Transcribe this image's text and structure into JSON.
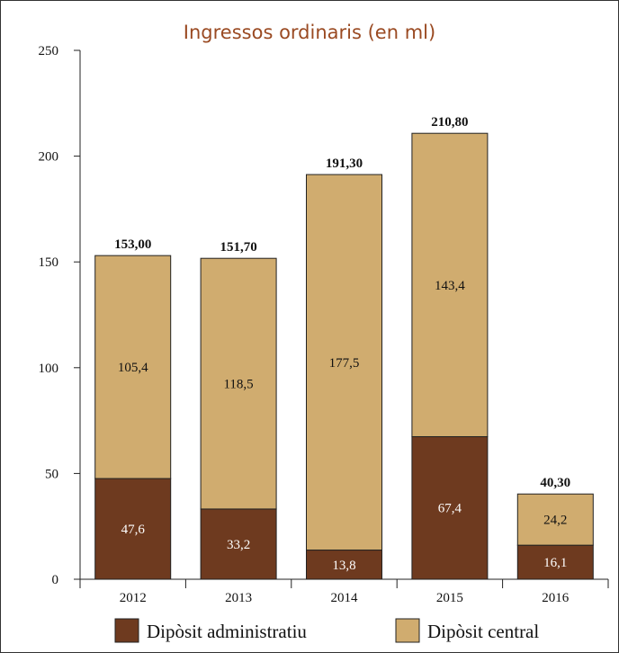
{
  "chart_data": {
    "type": "bar",
    "stacked": true,
    "title": "Ingressos ordinaris (en ml)",
    "categories": [
      "2012",
      "2013",
      "2014",
      "2015",
      "2016"
    ],
    "series": [
      {
        "name": "Dipòsit administratiu",
        "values": [
          47.6,
          33.2,
          13.8,
          67.4,
          16.1
        ],
        "labels": [
          "47,6",
          "33,2",
          "13,8",
          "67,4",
          "16,1"
        ],
        "color": "#6e3a1f"
      },
      {
        "name": "Dipòsit central",
        "values": [
          105.4,
          118.5,
          177.5,
          143.4,
          24.2
        ],
        "labels": [
          "105,4",
          "118,5",
          "177,5",
          "143,4",
          "24,2"
        ],
        "color": "#d0ac6f"
      }
    ],
    "totals": [
      153.0,
      151.7,
      191.3,
      210.8,
      40.3
    ],
    "total_labels": [
      "153,00",
      "151,70",
      "191,30",
      "210,80",
      "40,30"
    ],
    "ylim": [
      0,
      250
    ],
    "yticks": [
      0,
      50,
      100,
      150,
      200,
      250
    ],
    "grid": false,
    "legend_position": "bottom"
  }
}
